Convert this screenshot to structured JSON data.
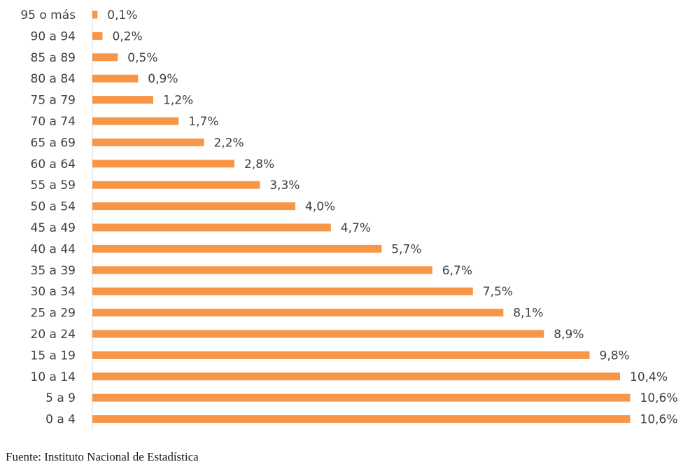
{
  "chart_data": {
    "type": "bar",
    "orientation": "horizontal",
    "categories": [
      "95 o más",
      "90 a 94",
      "85 a 89",
      "80 a 84",
      "75 a 79",
      "70 a 74",
      "65 a 69",
      "60 a 64",
      "55 a 59",
      "50 a 54",
      "45 a 49",
      "40 a 44",
      "35 a 39",
      "30 a 34",
      "25 a 29",
      "20 a 24",
      "15 a 19",
      "10 a 14",
      "5 a 9",
      "0 a 4"
    ],
    "values": [
      0.1,
      0.2,
      0.5,
      0.9,
      1.2,
      1.7,
      2.2,
      2.8,
      3.3,
      4.0,
      4.7,
      5.7,
      6.7,
      7.5,
      8.1,
      8.9,
      9.8,
      10.4,
      10.6,
      10.6
    ],
    "value_labels": [
      "0,1%",
      "0,2%",
      "0,5%",
      "0,9%",
      "1,2%",
      "1,7%",
      "2,2%",
      "2,8%",
      "3,3%",
      "4,0%",
      "4,7%",
      "5,7%",
      "6,7%",
      "7,5%",
      "8,1%",
      "8,9%",
      "9,8%",
      "10,4%",
      "10,6%",
      "10,6%"
    ],
    "bar_color": "#f79646",
    "grid": false,
    "legend": "none"
  },
  "source": "Fuente: Instituto Nacional de Estadística"
}
